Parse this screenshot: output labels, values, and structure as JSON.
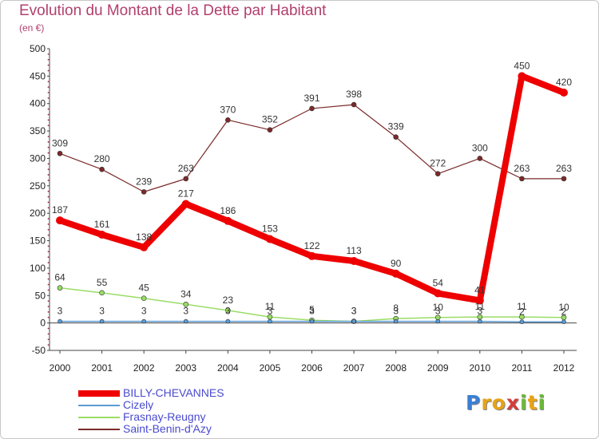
{
  "title": "Evolution du Montant de la Dette par Habitant",
  "unit": "(en €)",
  "logo": {
    "letters": [
      {
        "ch": "P",
        "color": "#3a7fd5"
      },
      {
        "ch": "r",
        "color": "#e8a317"
      },
      {
        "ch": "o",
        "color": "#e8a317"
      },
      {
        "ch": "x",
        "color": "#d63b3b"
      },
      {
        "ch": "i",
        "color": "#6bb83a"
      },
      {
        "ch": "t",
        "color": "#e8a317"
      },
      {
        "ch": "i",
        "color": "#6bb83a"
      }
    ]
  },
  "chart_data": {
    "type": "line",
    "title": "Evolution du Montant de la Dette par Habitant",
    "ylabel": "(en €)",
    "xlabel": "",
    "x": [
      "2000",
      "2001",
      "2002",
      "2003",
      "2004",
      "2005",
      "2006",
      "2007",
      "2008",
      "2009",
      "2010",
      "2011",
      "2012"
    ],
    "ylim": [
      -50,
      500
    ],
    "yticks": [
      -50,
      0,
      50,
      100,
      150,
      200,
      250,
      300,
      350,
      400,
      450,
      500
    ],
    "grid": false,
    "legend": "bottom-left",
    "series": [
      {
        "name": "BILLY-CHEVANNES",
        "color": "#ee0000",
        "width": 8,
        "marker": 5,
        "values": [
          187,
          161,
          138,
          217,
          186,
          153,
          122,
          113,
          90,
          54,
          41,
          450,
          420
        ],
        "labels": [
          "187",
          "161",
          "138",
          "217",
          "186",
          "153",
          "122",
          "113",
          "90",
          "54",
          "41",
          "450",
          "420"
        ]
      },
      {
        "name": "Cizely",
        "color": "#5b9bd5",
        "width": 1.5,
        "marker": 2.5,
        "values": [
          3,
          3,
          3,
          3,
          3,
          3,
          3,
          3,
          3,
          3,
          3,
          2,
          2
        ],
        "labels": [
          "3",
          "3",
          "3",
          "3",
          "3",
          "3",
          "3",
          "3",
          "3",
          "3",
          "3",
          "2",
          "2"
        ]
      },
      {
        "name": "Frasnay-Reugny",
        "color": "#99dd66",
        "width": 1.5,
        "marker": 3,
        "values": [
          64,
          55,
          45,
          34,
          23,
          11,
          5,
          3,
          8,
          10,
          11,
          11,
          10
        ],
        "labels": [
          "64",
          "55",
          "45",
          "34",
          "23",
          "11",
          "5",
          "3",
          "8",
          "10",
          "11",
          "11",
          "10"
        ]
      },
      {
        "name": "Saint-Benin-d'Azy",
        "color": "#7b2a2a",
        "width": 1.2,
        "marker": 3,
        "values": [
          309,
          280,
          239,
          263,
          370,
          352,
          391,
          398,
          339,
          272,
          300,
          263,
          263
        ],
        "labels": [
          "309",
          "280",
          "239",
          "263",
          "370",
          "352",
          "391",
          "398",
          "339",
          "272",
          "300",
          "263",
          "263"
        ]
      }
    ]
  }
}
